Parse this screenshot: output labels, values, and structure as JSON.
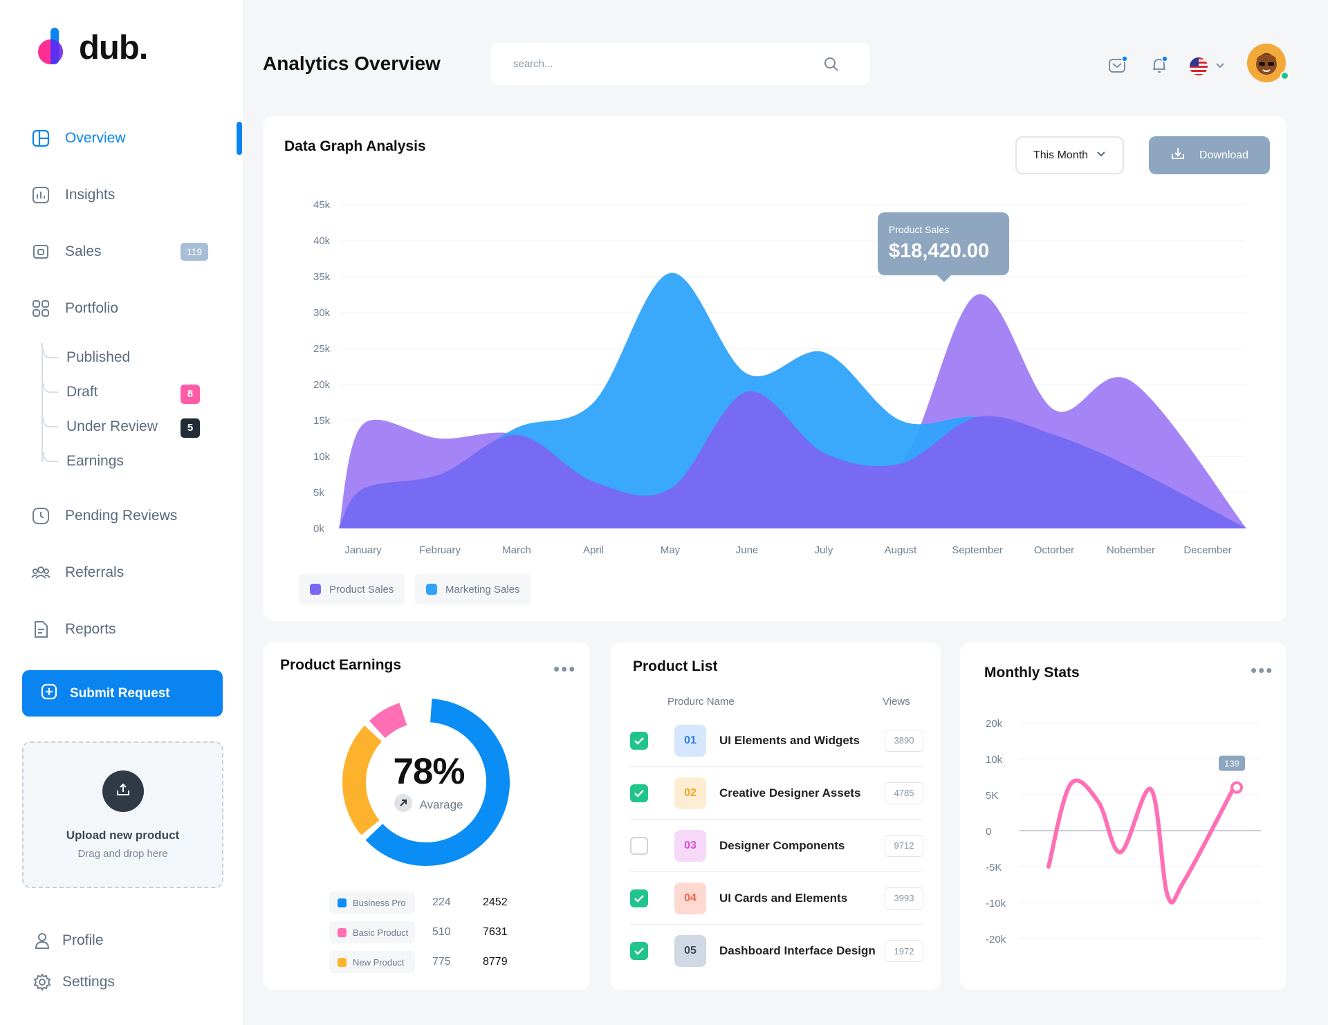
{
  "brand": {
    "name": "dub."
  },
  "sidebar": {
    "items": [
      {
        "label": "Overview",
        "icon": "layout-icon"
      },
      {
        "label": "Insights",
        "icon": "bar-chart-icon"
      },
      {
        "label": "Sales",
        "icon": "wallet-icon",
        "badge": "119"
      },
      {
        "label": "Portfolio",
        "icon": "grid-icon"
      },
      {
        "label": "Pending Reviews",
        "icon": "clock-icon"
      },
      {
        "label": "Referrals",
        "icon": "users-icon"
      },
      {
        "label": "Reports",
        "icon": "document-icon"
      }
    ],
    "portfolio_sub": [
      {
        "label": "Published"
      },
      {
        "label": "Draft",
        "badge": "8"
      },
      {
        "label": "Under Review",
        "badge": "5"
      },
      {
        "label": "Earnings"
      }
    ],
    "submit_label": "Submit Request",
    "upload_title": "Upload new product",
    "upload_sub": "Drag and drop here",
    "profile_label": "Profile",
    "settings_label": "Settings"
  },
  "header": {
    "title": "Analytics Overview",
    "search_placeholder": "search..."
  },
  "colors": {
    "accent": "#0a84f0",
    "product_sales": "#7b68f3",
    "marketing_sales": "#2fa3fb",
    "pink": "#ff6fb5",
    "orange": "#fdb22e"
  },
  "graph": {
    "title": "Data Graph Analysis",
    "period": "This Month",
    "download": "Download",
    "tooltip_label": "Product Sales",
    "tooltip_value": "$18,420.00",
    "legend": [
      "Product Sales",
      "Marketing Sales"
    ]
  },
  "chart_data": [
    {
      "type": "area",
      "title": "Data Graph Analysis",
      "categories": [
        "January",
        "February",
        "March",
        "April",
        "May",
        "June",
        "July",
        "August",
        "September",
        "Octorber",
        "Nobember",
        "December"
      ],
      "y_ticks": [
        "45k",
        "40k",
        "35k",
        "30k",
        "25k",
        "20k",
        "15k",
        "10k",
        "5k",
        "0k"
      ],
      "ylim": [
        0,
        45000
      ],
      "grid": true,
      "legend_position": "bottom-left",
      "series": [
        {
          "name": "Product Sales",
          "color": "#7b68f3",
          "values": [
            14500,
            12500,
            13000,
            6500,
            5500,
            19000,
            10500,
            9000,
            32500,
            16500,
            20500,
            0
          ]
        },
        {
          "name": "Marketing Sales",
          "color": "#2fa3fb",
          "values": [
            5500,
            7500,
            14000,
            17500,
            35500,
            21500,
            24500,
            15000,
            15500,
            13000,
            8500,
            0
          ]
        }
      ]
    },
    {
      "type": "pie",
      "title": "Product Earnings",
      "center_label": "78%",
      "center_sub": "Avarage",
      "series": [
        {
          "name": "Business Pro",
          "color": "#0a8ef5",
          "values": [
            224,
            2452
          ]
        },
        {
          "name": "Basic Product",
          "color": "#ff6fb5",
          "values": [
            510,
            7631
          ]
        },
        {
          "name": "New Product",
          "color": "#fdb22e",
          "values": [
            775,
            8779
          ]
        }
      ],
      "slices": [
        {
          "name": "Business Pro",
          "value": 0.63
        },
        {
          "name": "Basic Product",
          "value": 0.08
        },
        {
          "name": "New Product",
          "value": 0.24
        }
      ]
    },
    {
      "type": "line",
      "title": "Monthly Stats",
      "y_ticks": [
        "20k",
        "10k",
        "5K",
        "0",
        "-5K",
        "-10k",
        "-20k"
      ],
      "marker_label": "139",
      "series": [
        {
          "name": "",
          "color": "#ff6fb5",
          "values": [
            -5000,
            8000,
            4000,
            -3000,
            6500,
            -13000,
            -9000,
            7000
          ]
        }
      ]
    }
  ],
  "earnings": {
    "title": "Product Earnings",
    "rows": [
      {
        "name": "Business Pro",
        "v1": "224",
        "v2": "2452",
        "color": "#0a8ef5"
      },
      {
        "name": "Basic Product",
        "v1": "510",
        "v2": "7631",
        "color": "#ff6fb5"
      },
      {
        "name": "New Product",
        "v1": "775",
        "v2": "8779",
        "color": "#fdb22e"
      }
    ]
  },
  "product_list": {
    "title": "Product List",
    "col_name": "Produrc Name",
    "col_views": "Views",
    "rows": [
      {
        "num": "01",
        "name": "UI Elements and Widgets",
        "views": "3890",
        "checked": true,
        "bg": "#d6e6fd",
        "fg": "#2d7fe6"
      },
      {
        "num": "02",
        "name": "Creative Designer Assets",
        "views": "4785",
        "checked": true,
        "bg": "#fdedd2",
        "fg": "#f0a52a"
      },
      {
        "num": "03",
        "name": "Designer Components",
        "views": "9712",
        "checked": false,
        "bg": "#f6d8f8",
        "fg": "#d452d6"
      },
      {
        "num": "04",
        "name": "UI Cards and Elements",
        "views": "3993",
        "checked": true,
        "bg": "#fdd9d2",
        "fg": "#ee6a4c"
      },
      {
        "num": "05",
        "name": "Dashboard Interface Design",
        "views": "1972",
        "checked": true,
        "bg": "#cfd8e3",
        "fg": "#3d4b5c"
      }
    ]
  },
  "monthly": {
    "title": "Monthly Stats"
  }
}
